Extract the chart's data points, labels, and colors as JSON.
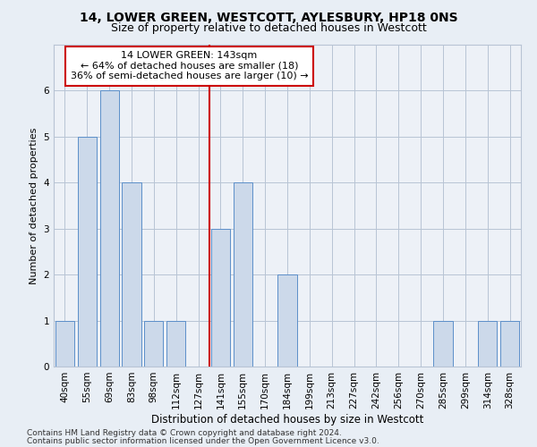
{
  "title1": "14, LOWER GREEN, WESTCOTT, AYLESBURY, HP18 0NS",
  "title2": "Size of property relative to detached houses in Westcott",
  "xlabel": "Distribution of detached houses by size in Westcott",
  "ylabel": "Number of detached properties",
  "categories": [
    "40sqm",
    "55sqm",
    "69sqm",
    "83sqm",
    "98sqm",
    "112sqm",
    "127sqm",
    "141sqm",
    "155sqm",
    "170sqm",
    "184sqm",
    "199sqm",
    "213sqm",
    "227sqm",
    "242sqm",
    "256sqm",
    "270sqm",
    "285sqm",
    "299sqm",
    "314sqm",
    "328sqm"
  ],
  "bar_values": [
    1,
    5,
    6,
    4,
    1,
    1,
    0,
    3,
    4,
    0,
    2,
    0,
    0,
    0,
    0,
    0,
    0,
    1,
    0,
    1,
    1
  ],
  "bar_color": "#ccd9ea",
  "bar_edgecolor": "#5b8fc9",
  "vline_x_index": 7,
  "vline_color": "#cc0000",
  "annotation_lines": [
    "14 LOWER GREEN: 143sqm",
    "← 64% of detached houses are smaller (18)",
    "36% of semi-detached houses are larger (10) →"
  ],
  "annotation_box_edgecolor": "#cc0000",
  "ylim": [
    0,
    7
  ],
  "yticks": [
    0,
    1,
    2,
    3,
    4,
    5,
    6,
    7
  ],
  "footer1": "Contains HM Land Registry data © Crown copyright and database right 2024.",
  "footer2": "Contains public sector information licensed under the Open Government Licence v3.0.",
  "bg_color": "#e8eef5",
  "plot_bg_color": "#edf1f7",
  "grid_color": "#b8c4d4",
  "title1_fontsize": 10,
  "title2_fontsize": 9,
  "xlabel_fontsize": 8.5,
  "ylabel_fontsize": 8,
  "tick_fontsize": 7.5,
  "annotation_fontsize": 8,
  "footer_fontsize": 6.5
}
